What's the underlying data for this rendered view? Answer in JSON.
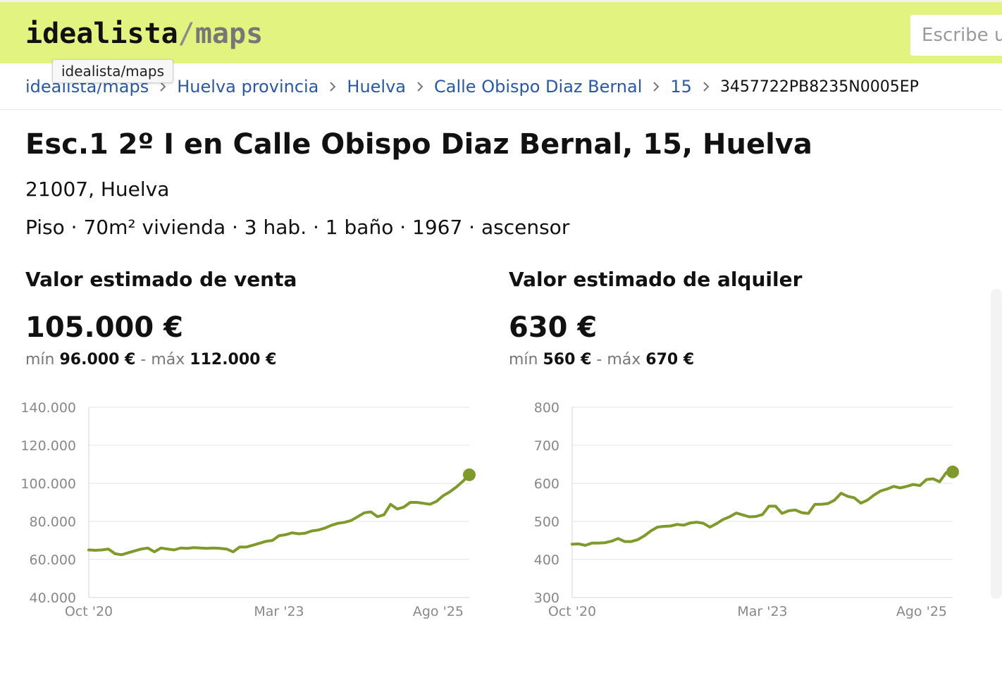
{
  "header": {
    "logo_brand": "idealista",
    "logo_slash": "/",
    "logo_maps": "maps",
    "search_placeholder": "Escribe u",
    "tooltip": "idealista/maps",
    "accent_color": "#e2f47f"
  },
  "breadcrumb": {
    "items": [
      "idealista/maps",
      "Huelva provincia",
      "Huelva",
      "Calle Obispo Diaz Bernal",
      "15"
    ],
    "current": "3457722PB8235N0005EP",
    "separator_icon": "chevron-right-icon"
  },
  "property": {
    "title": "Esc.1 2º I en Calle Obispo Diaz Bernal, 15, Huelva",
    "postal": "21007, Huelva",
    "features": "Piso · 70m² vivienda · 3 hab. · 1 baño · 1967 · ascensor"
  },
  "sale": {
    "heading": "Valor estimado de venta",
    "value": "105.000 €",
    "min_label": "mín",
    "min_value": "96.000 €",
    "dash": "-",
    "max_label": "máx",
    "max_value": "112.000 €"
  },
  "rent": {
    "heading": "Valor estimado de alquiler",
    "value": "630 €",
    "min_label": "mín",
    "min_value": "560 €",
    "dash": "-",
    "max_label": "máx",
    "max_value": "670 €"
  },
  "chart_data": [
    {
      "type": "line",
      "title": "",
      "line_color": "#7f9a2a",
      "ylim": [
        40000,
        140000
      ],
      "y_ticks": [
        140000,
        120000,
        100000,
        80000,
        60000,
        40000
      ],
      "y_tick_labels": [
        "140.000",
        "120.000",
        "100.000",
        "80.000",
        "60.000",
        "40.000"
      ],
      "x_tick_labels": [
        "Oct '20",
        "Mar '23",
        "Ago '25"
      ],
      "x_tick_positions": [
        0,
        29,
        58
      ],
      "grid": true,
      "series": [
        {
          "values": [
            65000,
            64800,
            65000,
            65500,
            63000,
            62500,
            63500,
            64500,
            65500,
            66000,
            64000,
            66000,
            65500,
            65000,
            66000,
            65800,
            66200,
            66000,
            65800,
            66000,
            65800,
            65500,
            64000,
            66500,
            66500,
            67500,
            68500,
            69500,
            70000,
            72500,
            73000,
            74000,
            73500,
            73800,
            75000,
            75500,
            76500,
            78000,
            79000,
            79500,
            80500,
            82500,
            84500,
            85000,
            82500,
            83500,
            89000,
            86500,
            87500,
            90000,
            90000,
            89500,
            89000,
            90500,
            93500,
            95500,
            98000,
            101000,
            104500
          ]
        }
      ]
    },
    {
      "type": "line",
      "title": "",
      "line_color": "#7f9a2a",
      "ylim": [
        300,
        800
      ],
      "y_ticks": [
        800,
        700,
        600,
        500,
        400,
        300
      ],
      "y_tick_labels": [
        "800",
        "700",
        "600",
        "500",
        "400",
        "300"
      ],
      "x_tick_labels": [
        "Oct '20",
        "Mar '23",
        "Ago '25"
      ],
      "x_tick_positions": [
        0,
        29,
        58
      ],
      "grid": true,
      "series": [
        {
          "values": [
            440,
            441,
            437,
            443,
            443,
            444,
            448,
            455,
            447,
            447,
            452,
            462,
            475,
            485,
            487,
            488,
            492,
            490,
            496,
            498,
            495,
            485,
            494,
            505,
            512,
            522,
            517,
            512,
            513,
            518,
            540,
            540,
            521,
            528,
            530,
            523,
            521,
            545,
            545,
            547,
            556,
            574,
            566,
            562,
            548,
            556,
            569,
            580,
            585,
            592,
            588,
            592,
            597,
            594,
            610,
            612,
            604,
            628,
            630
          ]
        }
      ]
    }
  ]
}
